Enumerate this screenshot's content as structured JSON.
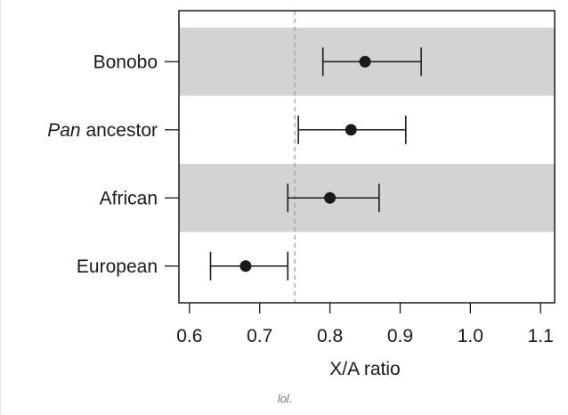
{
  "chart_data": {
    "type": "dot-whisker",
    "orientation": "horizontal",
    "categories": [
      {
        "label_italic": "",
        "label_plain": "Bonobo",
        "value": 0.85,
        "low": 0.79,
        "high": 0.93,
        "shaded": true
      },
      {
        "label_italic": "Pan",
        "label_plain": " ancestor",
        "value": 0.83,
        "low": 0.755,
        "high": 0.908,
        "shaded": false
      },
      {
        "label_italic": "",
        "label_plain": "African",
        "value": 0.8,
        "low": 0.74,
        "high": 0.87,
        "shaded": true
      },
      {
        "label_italic": "",
        "label_plain": "European",
        "value": 0.68,
        "low": 0.63,
        "high": 0.74,
        "shaded": false
      }
    ],
    "xlabel": "X/A ratio",
    "xlim": [
      0.585,
      1.12
    ],
    "xticks": [
      0.6,
      0.7,
      0.8,
      0.9,
      1.0,
      1.1
    ],
    "xtick_labels": [
      "0.6",
      "0.7",
      "0.8",
      "0.9",
      "1.0",
      "1.1"
    ],
    "reference_line": 0.75,
    "grid": false
  },
  "caption": "lol.",
  "colors": {
    "band": "#d3d3d3",
    "point": "#1a1a1a",
    "whisker": "#1a1a1a",
    "reference": "#a0a0a0",
    "axis": "#1a1a1a"
  }
}
